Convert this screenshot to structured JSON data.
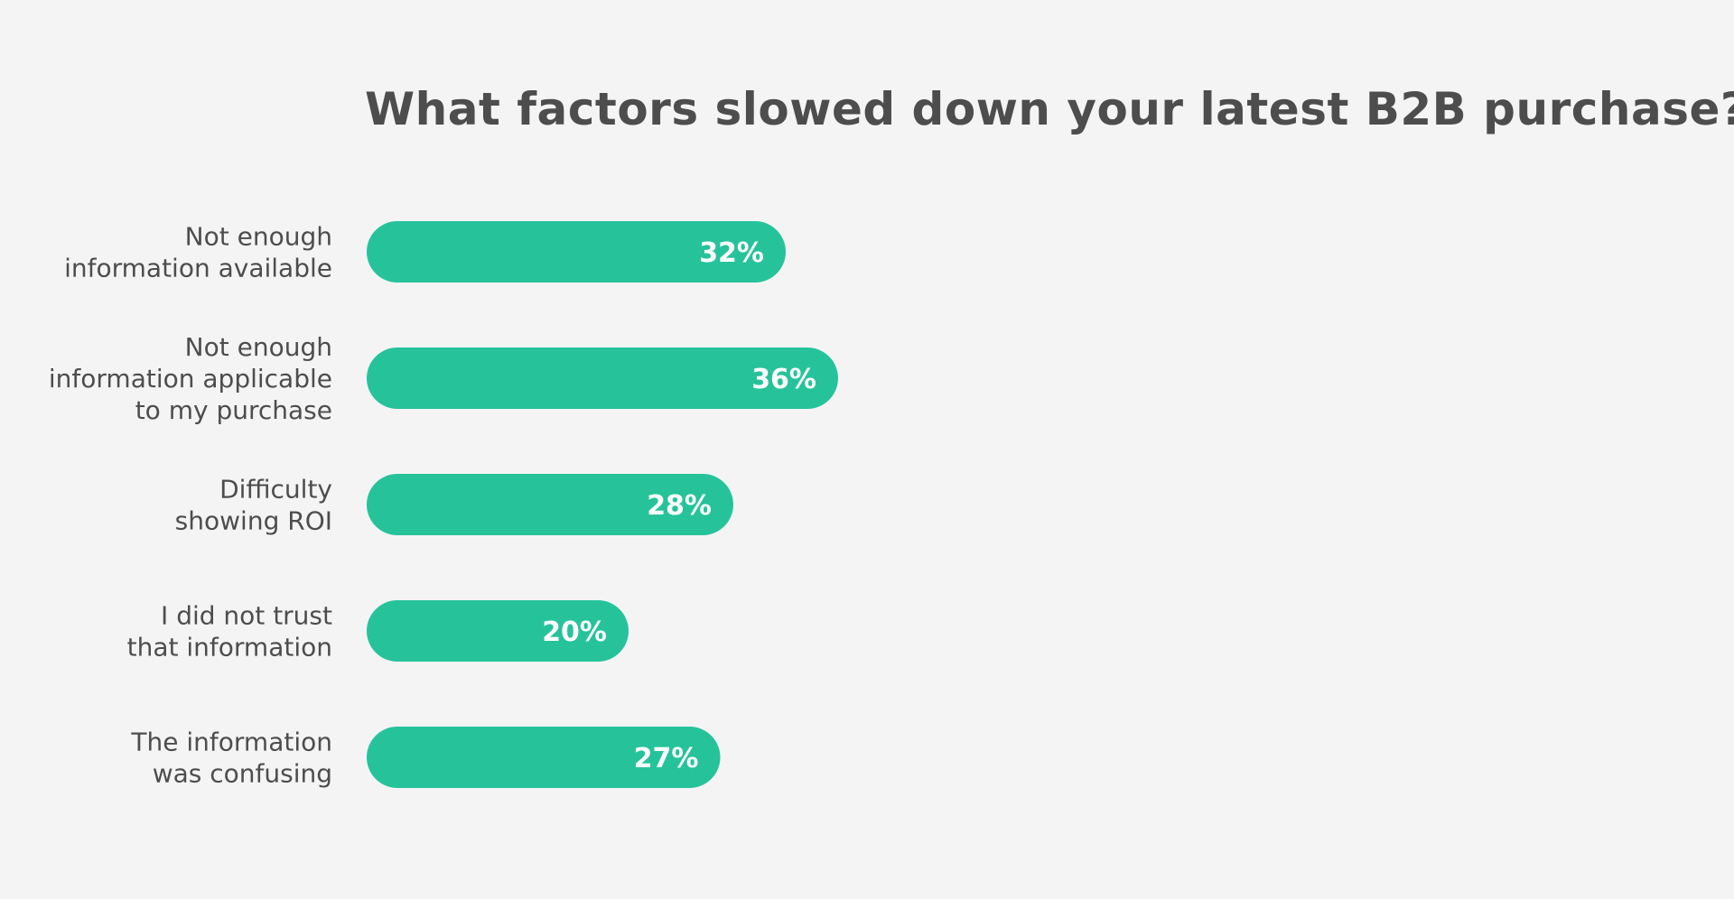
{
  "chart_data": {
    "type": "bar",
    "orientation": "horizontal",
    "title": "What factors slowed down your latest B2B purchase?",
    "categories": [
      [
        "Not enough",
        "information available"
      ],
      [
        "Not enough",
        "information applicable",
        "to my purchase"
      ],
      [
        "Difficulty",
        "showing ROI"
      ],
      [
        "I did not trust",
        "that information"
      ],
      [
        "The information",
        "was confusing"
      ]
    ],
    "values": [
      32,
      36,
      28,
      20,
      27
    ],
    "value_labels": [
      "32%",
      "36%",
      "28%",
      "20%",
      "27%"
    ],
    "grid": false,
    "legend": "none",
    "bar_color": "#26c39b"
  },
  "colors": {
    "background": "#f4f4f4",
    "text": "#4d4d4d",
    "bar": "#26c39b",
    "value_text": "#ffffff"
  }
}
